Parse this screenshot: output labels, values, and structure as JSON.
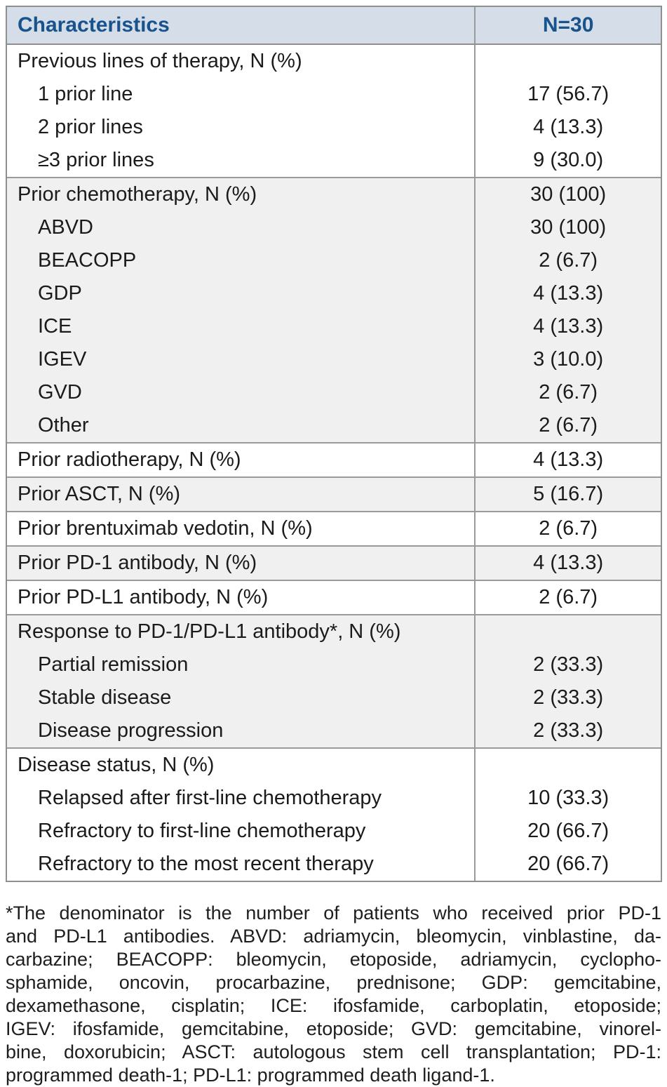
{
  "table": {
    "header": {
      "characteristics": "Characteristics",
      "n": "N=30"
    },
    "rows": [
      {
        "label": "Previous lines of therapy, N (%)",
        "value": "",
        "indent": false,
        "shaded": false,
        "rule": false
      },
      {
        "label": "1 prior line",
        "value": "17 (56.7)",
        "indent": true,
        "shaded": false,
        "rule": false
      },
      {
        "label": "2 prior lines",
        "value": "4 (13.3)",
        "indent": true,
        "shaded": false,
        "rule": false
      },
      {
        "label": "≥3 prior lines",
        "value": "9 (30.0)",
        "indent": true,
        "shaded": false,
        "rule": false
      },
      {
        "label": "Prior chemotherapy, N (%)",
        "value": "30 (100)",
        "indent": false,
        "shaded": true,
        "rule": true
      },
      {
        "label": "ABVD",
        "value": "30 (100)",
        "indent": true,
        "shaded": true,
        "rule": false
      },
      {
        "label": "BEACOPP",
        "value": "2 (6.7)",
        "indent": true,
        "shaded": true,
        "rule": false
      },
      {
        "label": "GDP",
        "value": "4 (13.3)",
        "indent": true,
        "shaded": true,
        "rule": false
      },
      {
        "label": "ICE",
        "value": "4 (13.3)",
        "indent": true,
        "shaded": true,
        "rule": false
      },
      {
        "label": "IGEV",
        "value": "3 (10.0)",
        "indent": true,
        "shaded": true,
        "rule": false
      },
      {
        "label": "GVD",
        "value": "2 (6.7)",
        "indent": true,
        "shaded": true,
        "rule": false
      },
      {
        "label": "Other",
        "value": "2 (6.7)",
        "indent": true,
        "shaded": true,
        "rule": false
      },
      {
        "label": "Prior radiotherapy, N (%)",
        "value": "4 (13.3)",
        "indent": false,
        "shaded": false,
        "rule": true
      },
      {
        "label": "Prior ASCT, N (%)",
        "value": "5 (16.7)",
        "indent": false,
        "shaded": true,
        "rule": true
      },
      {
        "label": "Prior brentuximab vedotin, N (%)",
        "value": "2 (6.7)",
        "indent": false,
        "shaded": false,
        "rule": true
      },
      {
        "label": "Prior PD-1 antibody, N (%)",
        "value": "4 (13.3)",
        "indent": false,
        "shaded": true,
        "rule": true
      },
      {
        "label": "Prior PD-L1 antibody, N (%)",
        "value": "2 (6.7)",
        "indent": false,
        "shaded": false,
        "rule": true
      },
      {
        "label": "Response to PD-1/PD-L1 antibody*, N (%)",
        "value": "",
        "indent": false,
        "shaded": true,
        "rule": true
      },
      {
        "label": "Partial remission",
        "value": "2 (33.3)",
        "indent": true,
        "shaded": true,
        "rule": false
      },
      {
        "label": "Stable disease",
        "value": "2 (33.3)",
        "indent": true,
        "shaded": true,
        "rule": false
      },
      {
        "label": "Disease progression",
        "value": "2 (33.3)",
        "indent": true,
        "shaded": true,
        "rule": false
      },
      {
        "label": "Disease status, N (%)",
        "value": "",
        "indent": false,
        "shaded": false,
        "rule": true
      },
      {
        "label": "Relapsed after first-line chemotherapy",
        "value": "10 (33.3)",
        "indent": true,
        "shaded": false,
        "rule": false
      },
      {
        "label": "Refractory to first-line chemotherapy",
        "value": "20 (66.7)",
        "indent": true,
        "shaded": false,
        "rule": false
      },
      {
        "label": "Refractory to the most recent therapy",
        "value": "20 (66.7)",
        "indent": true,
        "shaded": false,
        "rule": false
      }
    ]
  },
  "footnote": {
    "lines": [
      "*The denominator is the number of patients who received prior PD-1",
      "and PD-L1 antibodies. ABVD: adriamycin, bleomycin, vinblastine, da-",
      "carbazine; BEACOPP: bleomycin, etoposide, adriamycin, cyclopho-",
      "sphamide, oncovin, procarbazine, prednisone; GDP: gemcitabine,",
      "dexamethasone, cisplatin; ICE: ifosfamide, carboplatin, etoposide;",
      "IGEV: ifosfamide, gemcitabine, etoposide; GVD: gemcitabine, vinorel-",
      "bine, doxorubicin; ASCT: autologous stem cell transplantation; PD-1:",
      "programmed death-1; PD-L1: programmed death ligand-1."
    ]
  },
  "colors": {
    "header_bg": "#d5dee8",
    "header_text": "#19538e",
    "shaded_row_bg": "#f0f0f0",
    "border": "#8f8f8f"
  }
}
